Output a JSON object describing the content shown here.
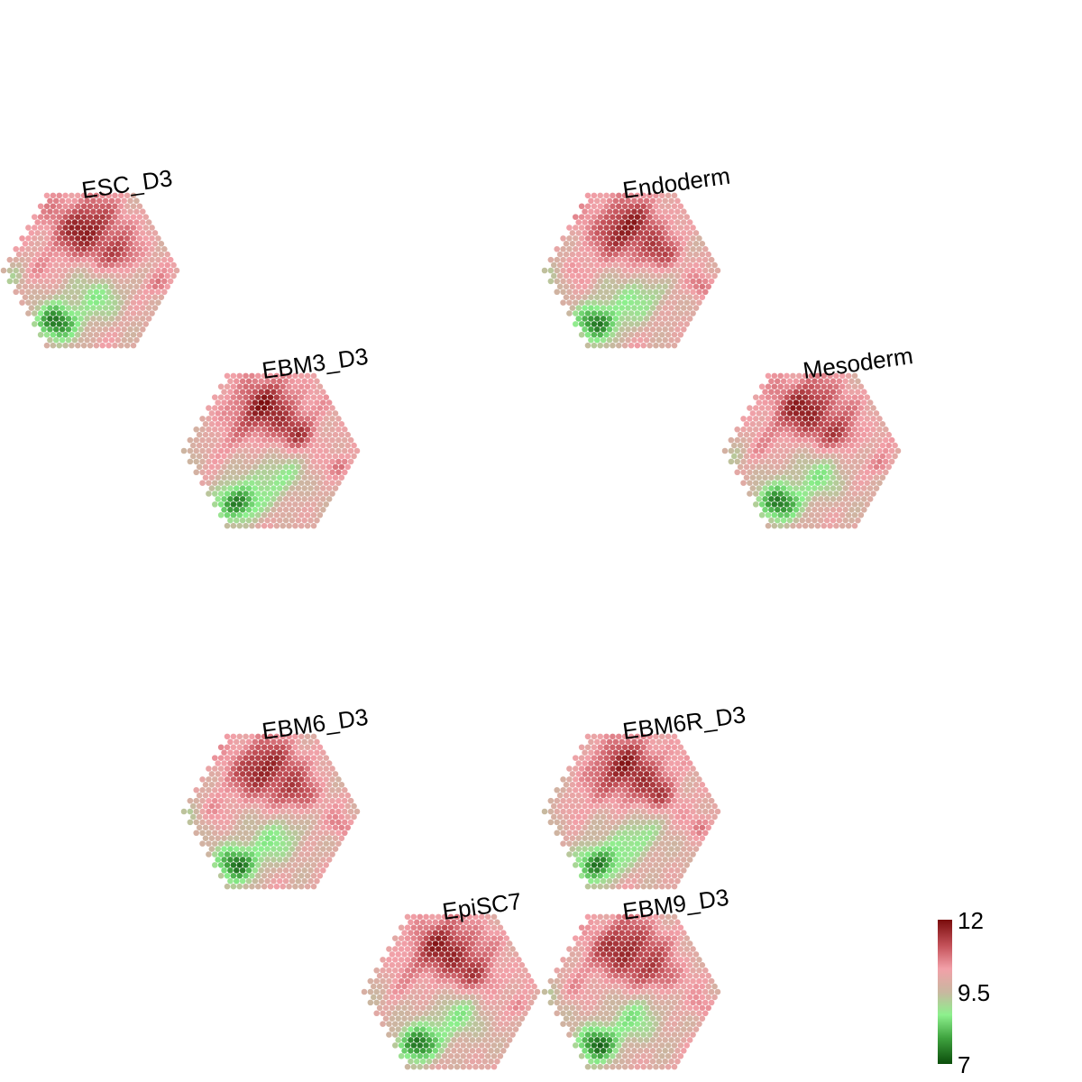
{
  "chart_data": {
    "type": "heatmap",
    "title": "",
    "xlabel": "",
    "ylabel": "",
    "maps": [
      {
        "name": "ESC_D3",
        "variant": 0
      },
      {
        "name": "Endoderm",
        "variant": 1
      },
      {
        "name": "EBM3_D3",
        "variant": 2
      },
      {
        "name": "Mesoderm",
        "variant": 3
      },
      {
        "name": "EBM6_D3",
        "variant": 4
      },
      {
        "name": "EBM6R_D3",
        "variant": 5
      },
      {
        "name": "EpiSC7",
        "variant": 6
      },
      {
        "name": "EBM9_D3",
        "variant": 7
      }
    ],
    "color_scale": {
      "min": 7,
      "max": 12,
      "ticks": [
        {
          "value": 12,
          "label": "12"
        },
        {
          "value": 9.5,
          "label": "9.5"
        },
        {
          "value": 7,
          "label": "7"
        }
      ],
      "stops": [
        {
          "value": 7,
          "color": "#0b4d0b"
        },
        {
          "value": 7.9,
          "color": "#3fa33f"
        },
        {
          "value": 8.7,
          "color": "#8df08d"
        },
        {
          "value": 9.5,
          "color": "#c9b7a0"
        },
        {
          "value": 10.3,
          "color": "#f2a0a8"
        },
        {
          "value": 11.1,
          "color": "#c4525a"
        },
        {
          "value": 12,
          "color": "#7a0c0c"
        }
      ]
    },
    "legend_position": "bottom-right"
  }
}
